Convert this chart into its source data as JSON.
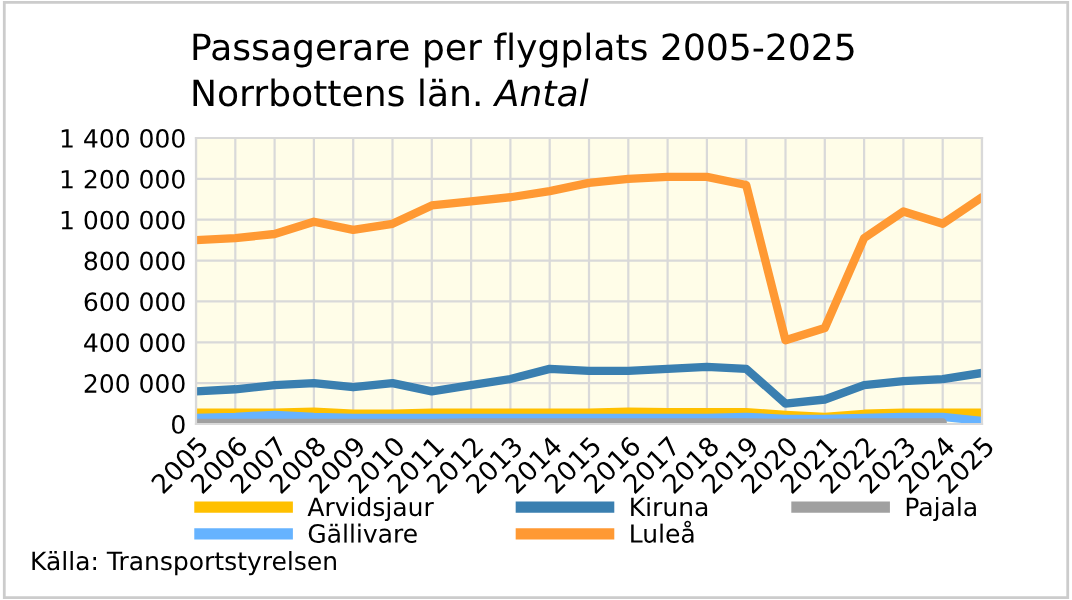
{
  "chart_data": {
    "type": "line",
    "title": "Passagerare per flygplats 2005-2025",
    "subtitle": "Norrbottens län. Antal",
    "categories": [
      "2005",
      "2006",
      "2007",
      "2008",
      "2009",
      "2010",
      "2011",
      "2012",
      "2013",
      "2014",
      "2015",
      "2016",
      "2017",
      "2018",
      "2019",
      "2020",
      "2021",
      "2022",
      "2023",
      "2024",
      "2025"
    ],
    "series": [
      {
        "name": "Arvidsjaur",
        "color": "#ffc000",
        "values": [
          55000,
          55000,
          55000,
          60000,
          50000,
          50000,
          55000,
          55000,
          55000,
          55000,
          55000,
          60000,
          58000,
          58000,
          58000,
          45000,
          35000,
          50000,
          55000,
          55000,
          55000
        ]
      },
      {
        "name": "Gällivare",
        "color": "#66b3ff",
        "values": [
          30000,
          35000,
          45000,
          35000,
          30000,
          30000,
          30000,
          30000,
          30000,
          30000,
          30000,
          30000,
          30000,
          30000,
          35000,
          25000,
          25000,
          30000,
          35000,
          35000,
          15000
        ]
      },
      {
        "name": "Kiruna",
        "color": "#3a7fb0",
        "values": [
          160000,
          170000,
          190000,
          200000,
          180000,
          200000,
          160000,
          190000,
          220000,
          270000,
          260000,
          260000,
          270000,
          280000,
          270000,
          100000,
          120000,
          190000,
          210000,
          220000,
          250000
        ]
      },
      {
        "name": "Luleå",
        "color": "#ff9933",
        "values": [
          900000,
          910000,
          930000,
          990000,
          950000,
          980000,
          1070000,
          1090000,
          1110000,
          1140000,
          1180000,
          1200000,
          1210000,
          1210000,
          1170000,
          410000,
          470000,
          910000,
          1040000,
          980000,
          1110000
        ]
      },
      {
        "name": "Pajala",
        "color": "#a0a0a0",
        "values": [
          5000,
          5000,
          5000,
          5000,
          5000,
          5000,
          5000,
          8000,
          8000,
          8000,
          8000,
          8000,
          8000,
          8000,
          8000,
          5000,
          5000,
          8000,
          8000,
          8000,
          null
        ]
      }
    ],
    "ylim": [
      0,
      1400000
    ],
    "yticks": [
      0,
      {
        "value": 200000,
        "label": "200 000"
      },
      {
        "value": 400000,
        "label": "400 000"
      },
      {
        "value": 600000,
        "label": "600 000"
      },
      {
        "value": 800000,
        "label": "800 000"
      },
      {
        "value": 1000000,
        "label": "1 000 000"
      },
      {
        "value": 1200000,
        "label": "1 200 000"
      },
      {
        "value": 1400000,
        "label": "1 400 000"
      }
    ],
    "grid": true,
    "legend": "bottom",
    "marker": "none",
    "line_style": "solid",
    "annotations": [
      "Källa: Transportstyrelsen"
    ]
  }
}
